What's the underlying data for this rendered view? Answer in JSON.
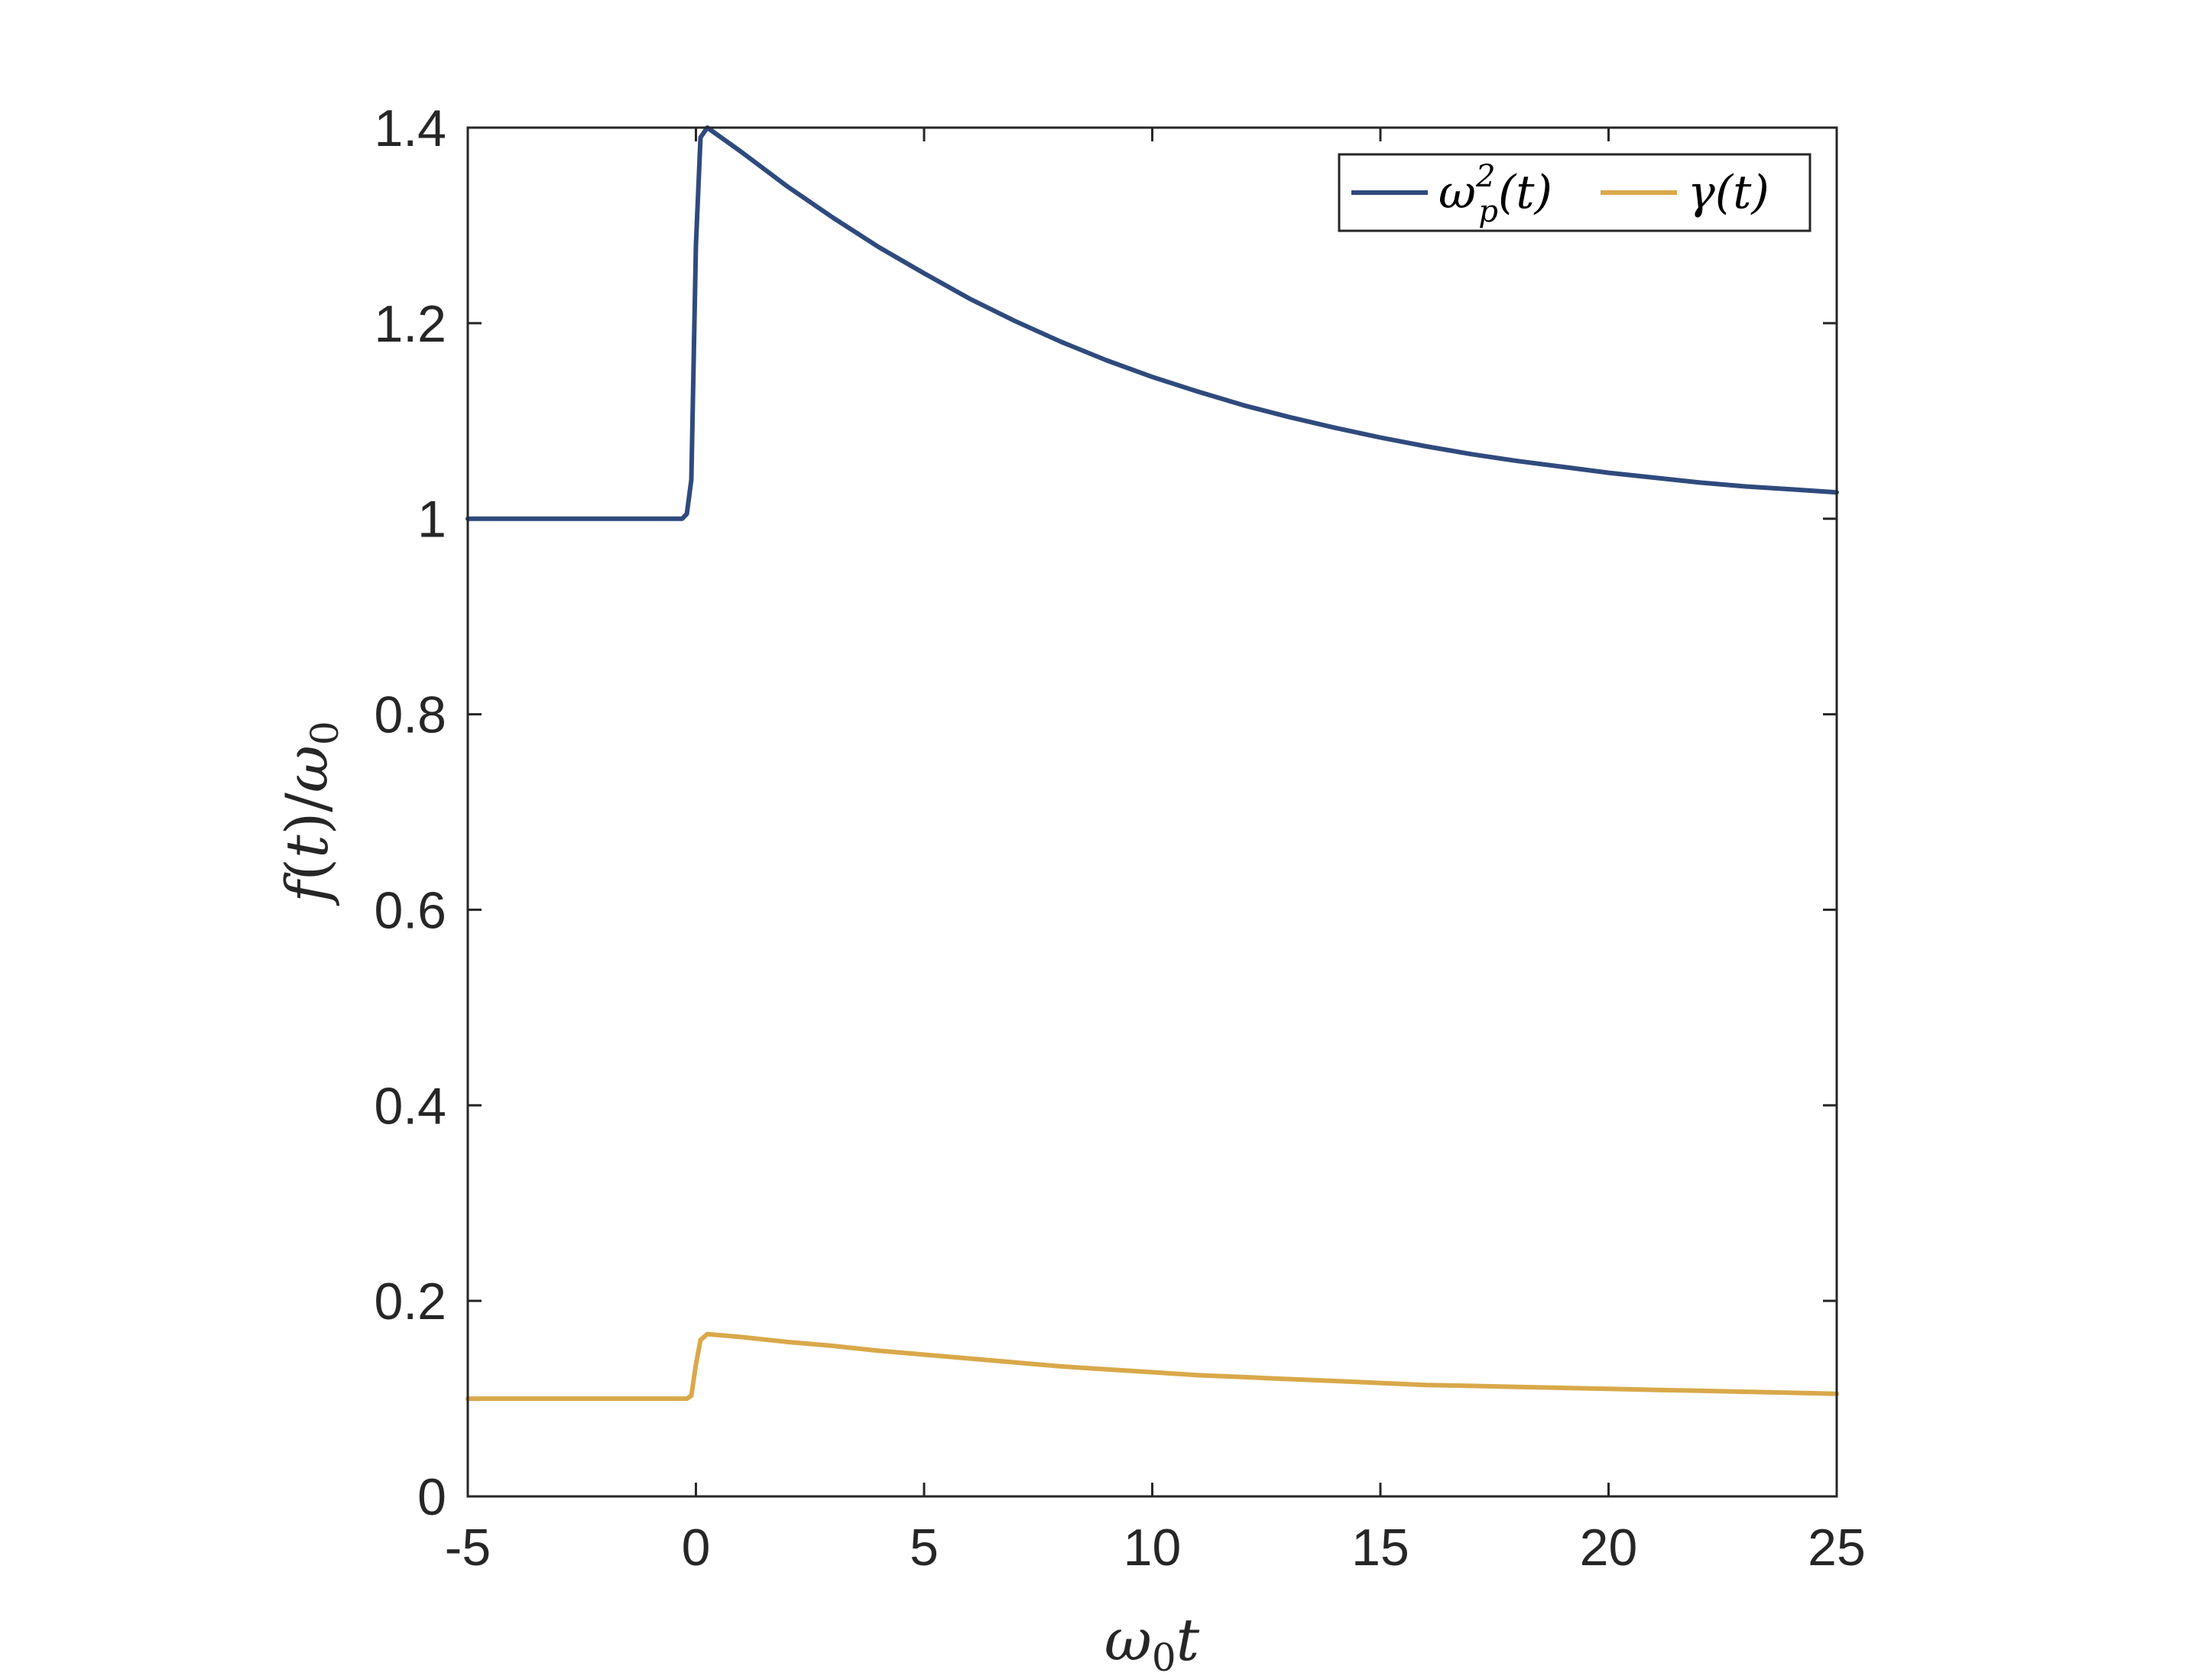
{
  "chart_data": {
    "type": "line",
    "xlabel": "ω₀t",
    "ylabel": "f(t)/ω₀",
    "xlim": [
      -5,
      25
    ],
    "ylim": [
      0,
      1.4
    ],
    "x_ticks": [
      "-5",
      "0",
      "5",
      "10",
      "15",
      "20",
      "25"
    ],
    "y_ticks": [
      "0",
      "0.2",
      "0.4",
      "0.6",
      "0.8",
      "1",
      "1.2",
      "1.4"
    ],
    "grid": false,
    "legend_position": "top-right",
    "series": [
      {
        "name": "ωp²(t)",
        "color": "#2f4a7d",
        "points": [
          [
            -5,
            1.0
          ],
          [
            -0.3,
            1.0
          ],
          [
            -0.2,
            1.005
          ],
          [
            -0.1,
            1.04
          ],
          [
            0.0,
            1.28
          ],
          [
            0.1,
            1.39
          ],
          [
            0.25,
            1.4
          ],
          [
            1,
            1.375
          ],
          [
            2,
            1.34
          ],
          [
            3,
            1.308
          ],
          [
            4,
            1.278
          ],
          [
            5,
            1.251
          ],
          [
            6,
            1.225
          ],
          [
            7,
            1.202
          ],
          [
            8,
            1.181
          ],
          [
            9,
            1.162
          ],
          [
            10,
            1.145
          ],
          [
            11,
            1.13
          ],
          [
            12,
            1.116
          ],
          [
            13,
            1.104
          ],
          [
            14,
            1.093
          ],
          [
            15,
            1.083
          ],
          [
            16,
            1.074
          ],
          [
            17,
            1.066
          ],
          [
            18,
            1.059
          ],
          [
            19,
            1.053
          ],
          [
            20,
            1.047
          ],
          [
            21,
            1.042
          ],
          [
            22,
            1.037
          ],
          [
            23,
            1.033
          ],
          [
            24,
            1.03
          ],
          [
            25,
            1.027
          ]
        ]
      },
      {
        "name": "γ(t)",
        "color": "#d9a84a",
        "points": [
          [
            -5,
            0.1
          ],
          [
            -0.2,
            0.1
          ],
          [
            -0.1,
            0.103
          ],
          [
            0.0,
            0.135
          ],
          [
            0.1,
            0.16
          ],
          [
            0.25,
            0.166
          ],
          [
            1,
            0.163
          ],
          [
            2,
            0.158
          ],
          [
            3,
            0.154
          ],
          [
            4,
            0.149
          ],
          [
            5,
            0.145
          ],
          [
            6,
            0.141
          ],
          [
            7,
            0.137
          ],
          [
            8,
            0.133
          ],
          [
            9,
            0.13
          ],
          [
            10,
            0.127
          ],
          [
            11,
            0.124
          ],
          [
            12,
            0.122
          ],
          [
            13,
            0.12
          ],
          [
            14,
            0.118
          ],
          [
            15,
            0.116
          ],
          [
            16,
            0.114
          ],
          [
            17,
            0.113
          ],
          [
            18,
            0.112
          ],
          [
            19,
            0.111
          ],
          [
            20,
            0.11
          ],
          [
            21,
            0.109
          ],
          [
            22,
            0.108
          ],
          [
            23,
            0.107
          ],
          [
            24,
            0.106
          ],
          [
            25,
            0.105
          ]
        ]
      }
    ]
  }
}
